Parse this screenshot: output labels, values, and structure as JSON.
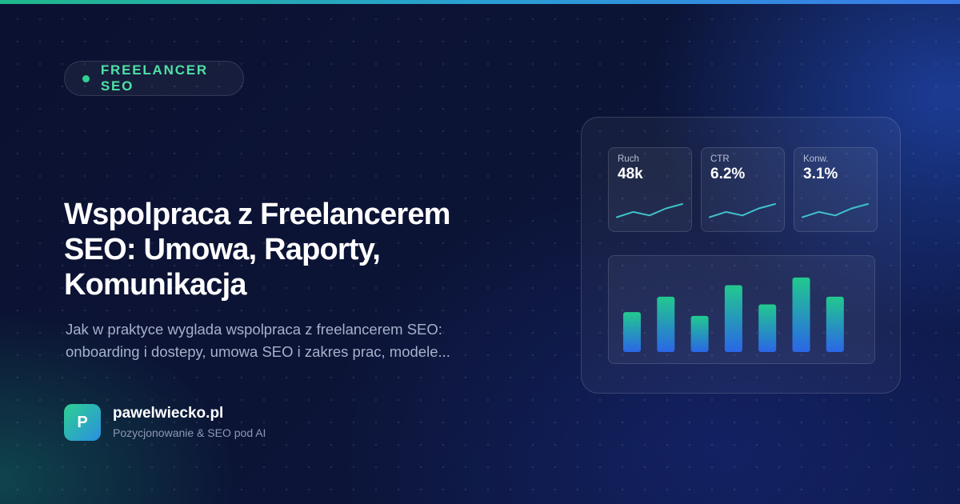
{
  "badge": {
    "text": "FREELANCER SEO"
  },
  "article": {
    "title": "Wspolpraca z Freelancerem SEO: Umowa, Raporty, Komunikacja",
    "description": "Jak w praktyce wyglada wspolpraca z freelancerem SEO: onboarding i dostepy, umowa SEO i zakres prac, modele..."
  },
  "brand": {
    "logo_letter": "P",
    "name": "pawelwiecko.pl",
    "tagline": "Pozycjonowanie & SEO pod AI"
  },
  "dashboard": {
    "kpis": [
      {
        "label": "Ruch",
        "value": "48k"
      },
      {
        "label": "CTR",
        "value": "6.2%"
      },
      {
        "label": "Konw.",
        "value": "3.1%"
      }
    ],
    "sparkline_trend": [
      0.25,
      0.55,
      0.35,
      0.75,
      1.0
    ],
    "bars": [
      0.52,
      0.72,
      0.47,
      0.87,
      0.62,
      0.97,
      0.72
    ]
  },
  "colors": {
    "accent_green": "#2ed191",
    "accent_blue": "#2a6fe0",
    "background": "#0b1230"
  }
}
